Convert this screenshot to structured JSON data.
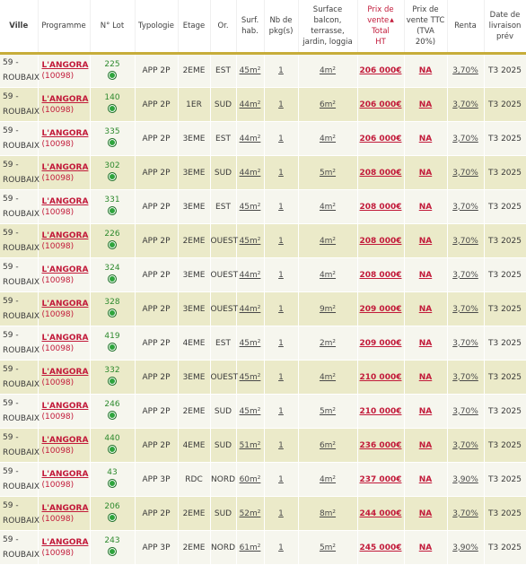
{
  "headers": {
    "ville": "Ville",
    "programme": "Programme",
    "lot": "N° Lot",
    "typologie": "Typologie",
    "etage": "Etage",
    "or": "Or.",
    "surf_l1": "Surf.",
    "surf_l2": "hab.",
    "pkg_l1": "Nb de",
    "pkg_l2": "pkg(s)",
    "balcon_l1": "Surface",
    "balcon_l2": "balcon,",
    "balcon_l3": "terrasse,",
    "balcon_l4": "jardin, loggia",
    "prixht_l1": "Prix de",
    "prixht_l2": "vente",
    "prixht_l3": "Total",
    "prixht_l4": "HT",
    "prixttc_l1": "Prix de",
    "prixttc_l2": "vente TTC",
    "prixttc_l3": "(TVA",
    "prixttc_l4": "20%)",
    "renta": "Renta",
    "livraison_l1": "Date de",
    "livraison_l2": "livraison",
    "livraison_l3": "prév"
  },
  "sort_icon": "sort-asc-icon",
  "colors": {
    "accent_red": "#c21a3a",
    "status_green": "#2ea43c",
    "header_rule": "#c7ad3a"
  },
  "rows": [
    {
      "ville1": "59 -",
      "ville2": "ROUBAIX",
      "prog1": "L'ANGORA",
      "prog2": "(10098)",
      "lot": "225",
      "typo": "APP 2P",
      "etage": "2EME",
      "or": "EST",
      "surf": "45m²",
      "pkg": "1",
      "balcon": "4m²",
      "prix": "206 000€",
      "ttc": "NA",
      "renta": "3,70%",
      "livraison": "T3 2025"
    },
    {
      "ville1": "59 -",
      "ville2": "ROUBAIX",
      "prog1": "L'ANGORA",
      "prog2": "(10098)",
      "lot": "140",
      "typo": "APP 2P",
      "etage": "1ER",
      "or": "SUD",
      "surf": "44m²",
      "pkg": "1",
      "balcon": "6m²",
      "prix": "206 000€",
      "ttc": "NA",
      "renta": "3,70%",
      "livraison": "T3 2025"
    },
    {
      "ville1": "59 -",
      "ville2": "ROUBAIX",
      "prog1": "L'ANGORA",
      "prog2": "(10098)",
      "lot": "335",
      "typo": "APP 2P",
      "etage": "3EME",
      "or": "EST",
      "surf": "44m²",
      "pkg": "1",
      "balcon": "4m²",
      "prix": "206 000€",
      "ttc": "NA",
      "renta": "3,70%",
      "livraison": "T3 2025"
    },
    {
      "ville1": "59 -",
      "ville2": "ROUBAIX",
      "prog1": "L'ANGORA",
      "prog2": "(10098)",
      "lot": "302",
      "typo": "APP 2P",
      "etage": "3EME",
      "or": "SUD",
      "surf": "44m²",
      "pkg": "1",
      "balcon": "5m²",
      "prix": "208 000€",
      "ttc": "NA",
      "renta": "3,70%",
      "livraison": "T3 2025"
    },
    {
      "ville1": "59 -",
      "ville2": "ROUBAIX",
      "prog1": "L'ANGORA",
      "prog2": "(10098)",
      "lot": "331",
      "typo": "APP 2P",
      "etage": "3EME",
      "or": "EST",
      "surf": "45m²",
      "pkg": "1",
      "balcon": "4m²",
      "prix": "208 000€",
      "ttc": "NA",
      "renta": "3,70%",
      "livraison": "T3 2025"
    },
    {
      "ville1": "59 -",
      "ville2": "ROUBAIX",
      "prog1": "L'ANGORA",
      "prog2": "(10098)",
      "lot": "226",
      "typo": "APP 2P",
      "etage": "2EME",
      "or": "OUEST",
      "surf": "45m²",
      "pkg": "1",
      "balcon": "4m²",
      "prix": "208 000€",
      "ttc": "NA",
      "renta": "3,70%",
      "livraison": "T3 2025"
    },
    {
      "ville1": "59 -",
      "ville2": "ROUBAIX",
      "prog1": "L'ANGORA",
      "prog2": "(10098)",
      "lot": "324",
      "typo": "APP 2P",
      "etage": "3EME",
      "or": "OUEST",
      "surf": "44m²",
      "pkg": "1",
      "balcon": "4m²",
      "prix": "208 000€",
      "ttc": "NA",
      "renta": "3,70%",
      "livraison": "T3 2025"
    },
    {
      "ville1": "59 -",
      "ville2": "ROUBAIX",
      "prog1": "L'ANGORA",
      "prog2": "(10098)",
      "lot": "328",
      "typo": "APP 2P",
      "etage": "3EME",
      "or": "OUEST",
      "surf": "44m²",
      "pkg": "1",
      "balcon": "9m²",
      "prix": "209 000€",
      "ttc": "NA",
      "renta": "3,70%",
      "livraison": "T3 2025"
    },
    {
      "ville1": "59 -",
      "ville2": "ROUBAIX",
      "prog1": "L'ANGORA",
      "prog2": "(10098)",
      "lot": "419",
      "typo": "APP 2P",
      "etage": "4EME",
      "or": "EST",
      "surf": "45m²",
      "pkg": "1",
      "balcon": "2m²",
      "prix": "209 000€",
      "ttc": "NA",
      "renta": "3,70%",
      "livraison": "T3 2025"
    },
    {
      "ville1": "59 -",
      "ville2": "ROUBAIX",
      "prog1": "L'ANGORA",
      "prog2": "(10098)",
      "lot": "332",
      "typo": "APP 2P",
      "etage": "3EME",
      "or": "OUEST",
      "surf": "45m²",
      "pkg": "1",
      "balcon": "4m²",
      "prix": "210 000€",
      "ttc": "NA",
      "renta": "3,70%",
      "livraison": "T3 2025"
    },
    {
      "ville1": "59 -",
      "ville2": "ROUBAIX",
      "prog1": "L'ANGORA",
      "prog2": "(10098)",
      "lot": "246",
      "typo": "APP 2P",
      "etage": "2EME",
      "or": "SUD",
      "surf": "45m²",
      "pkg": "1",
      "balcon": "5m²",
      "prix": "210 000€",
      "ttc": "NA",
      "renta": "3,70%",
      "livraison": "T3 2025"
    },
    {
      "ville1": "59 -",
      "ville2": "ROUBAIX",
      "prog1": "L'ANGORA",
      "prog2": "(10098)",
      "lot": "440",
      "typo": "APP 2P",
      "etage": "4EME",
      "or": "SUD",
      "surf": "51m²",
      "pkg": "1",
      "balcon": "6m²",
      "prix": "236 000€",
      "ttc": "NA",
      "renta": "3,70%",
      "livraison": "T3 2025"
    },
    {
      "ville1": "59 -",
      "ville2": "ROUBAIX",
      "prog1": "L'ANGORA",
      "prog2": "(10098)",
      "lot": "43",
      "typo": "APP 3P",
      "etage": "RDC",
      "or": "NORD",
      "surf": "60m²",
      "pkg": "1",
      "balcon": "4m²",
      "prix": "237 000€",
      "ttc": "NA",
      "renta": "3,90%",
      "livraison": "T3 2025"
    },
    {
      "ville1": "59 -",
      "ville2": "ROUBAIX",
      "prog1": "L'ANGORA",
      "prog2": "(10098)",
      "lot": "206",
      "typo": "APP 2P",
      "etage": "2EME",
      "or": "SUD",
      "surf": "52m²",
      "pkg": "1",
      "balcon": "8m²",
      "prix": "244 000€",
      "ttc": "NA",
      "renta": "3,70%",
      "livraison": "T3 2025"
    },
    {
      "ville1": "59 -",
      "ville2": "ROUBAIX",
      "prog1": "L'ANGORA",
      "prog2": "(10098)",
      "lot": "243",
      "typo": "APP 3P",
      "etage": "2EME",
      "or": "NORD",
      "surf": "61m²",
      "pkg": "1",
      "balcon": "5m²",
      "prix": "245 000€",
      "ttc": "NA",
      "renta": "3,90%",
      "livraison": "T3 2025"
    }
  ]
}
